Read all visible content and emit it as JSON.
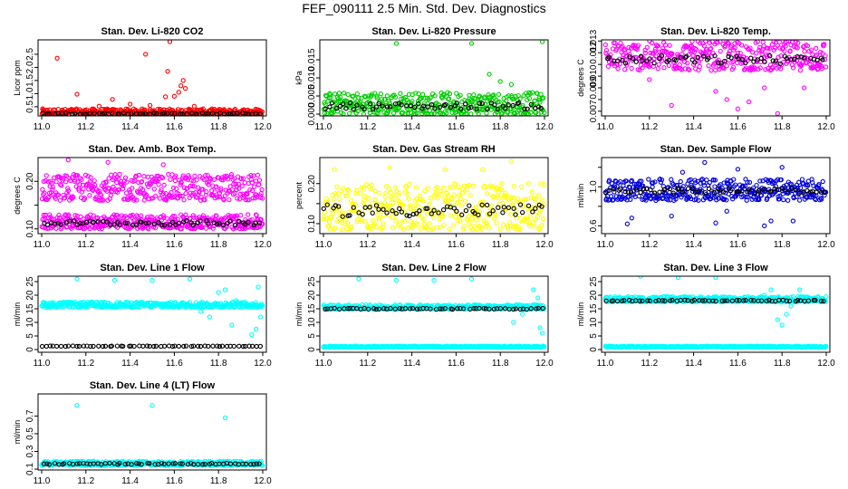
{
  "page_title": "FEF_090111  2.5 Min. Std. Dev. Diagnostics",
  "chart_data": [
    {
      "type": "scatter",
      "title": "Stan. Dev. Li-820 CO2",
      "xlabel": "",
      "ylabel": "Licor ppm",
      "xlim": [
        11.0,
        12.0
      ],
      "ylim": [
        0.15,
        3.05
      ],
      "xticks": [
        11.0,
        11.2,
        11.4,
        11.6,
        11.8,
        12.0
      ],
      "xtick_labels": [
        "11.0",
        "11.2",
        "11.4",
        "11.6",
        "11.8",
        "12.0"
      ],
      "yticks": [
        0.5,
        1.0,
        1.5,
        2.0,
        2.5
      ],
      "ytick_labels": [
        "0.5",
        "1.0",
        "1.5",
        "2.0",
        "2.5"
      ],
      "series": [
        {
          "color": "#ff0000",
          "band": [
            0.18,
            0.42
          ],
          "outliers": [
            [
              11.07,
              2.35
            ],
            [
              11.16,
              0.98
            ],
            [
              11.32,
              0.78
            ],
            [
              11.47,
              2.5
            ],
            [
              11.49,
              0.55
            ],
            [
              11.56,
              0.88
            ],
            [
              11.57,
              1.85
            ],
            [
              11.58,
              2.98
            ],
            [
              11.6,
              0.9
            ],
            [
              11.62,
              1.05
            ],
            [
              11.63,
              1.3
            ],
            [
              11.64,
              1.5
            ],
            [
              11.65,
              1.2
            ],
            [
              11.26,
              0.52
            ],
            [
              11.4,
              0.6
            ],
            [
              11.69,
              0.52
            ]
          ]
        },
        {
          "color": "#000000",
          "band": [
            0.18,
            0.3
          ],
          "outliers": []
        }
      ]
    },
    {
      "type": "scatter",
      "title": "Stan. Dev. Li-820 Pressure",
      "xlabel": "",
      "ylabel": "kPa",
      "xlim": [
        11.0,
        12.0
      ],
      "ylim": [
        -0.0005,
        0.0205
      ],
      "xticks": [
        11.0,
        11.2,
        11.4,
        11.6,
        11.8,
        12.0
      ],
      "xtick_labels": [
        "11.0",
        "11.2",
        "11.4",
        "11.6",
        "11.8",
        "12.0"
      ],
      "yticks": [
        0.0,
        0.005,
        0.01,
        0.015
      ],
      "ytick_labels": [
        "0.000",
        "0.005",
        "0.010",
        "0.015"
      ],
      "series": [
        {
          "color": "#00cc00",
          "band": [
            0.0,
            0.006
          ],
          "outliers": [
            [
              11.33,
              0.0195
            ],
            [
              11.67,
              0.0195
            ],
            [
              11.99,
              0.02
            ],
            [
              11.75,
              0.011
            ],
            [
              11.8,
              0.009
            ],
            [
              11.85,
              0.0082
            ]
          ]
        },
        {
          "color": "#000000",
          "band": [
            0.0,
            0.0045
          ],
          "outliers": []
        }
      ]
    },
    {
      "type": "scatter",
      "title": "Stan. Dev. Li-820 Temp.",
      "xlabel": "",
      "ylabel": "degrees C",
      "xlim": [
        11.0,
        12.0
      ],
      "ylim": [
        0.0066,
        0.0131
      ],
      "xticks": [
        11.0,
        11.2,
        11.4,
        11.6,
        11.8,
        12.0
      ],
      "xtick_labels": [
        "11.0",
        "11.2",
        "11.4",
        "11.6",
        "11.8",
        "12.0"
      ],
      "yticks": [
        0.007,
        0.008,
        0.009,
        0.01,
        0.011,
        0.012,
        0.013
      ],
      "ytick_labels": [
        "0.007",
        "",
        "0.009",
        "0.010",
        "",
        "0.012",
        "0.013"
      ],
      "series": [
        {
          "color": "#ff00ff",
          "band": [
            0.0105,
            0.013
          ],
          "outliers": [
            [
              11.3,
              0.0075
            ],
            [
              11.5,
              0.0087
            ],
            [
              11.55,
              0.008
            ],
            [
              11.6,
              0.0072
            ],
            [
              11.65,
              0.0078
            ],
            [
              11.72,
              0.009
            ],
            [
              11.78,
              0.0068
            ],
            [
              11.9,
              0.009
            ],
            [
              11.2,
              0.0097
            ]
          ]
        },
        {
          "color": "#000000",
          "band": [
            0.0105,
            0.0123
          ],
          "outliers": []
        }
      ]
    },
    {
      "type": "scatter",
      "title": "Stan. Dev. Amb. Box Temp.",
      "xlabel": "",
      "ylabel": "degrees C",
      "xlim": [
        11.0,
        12.0
      ],
      "ylim": [
        0.09,
        0.25
      ],
      "xticks": [
        11.0,
        11.2,
        11.4,
        11.6,
        11.8,
        12.0
      ],
      "xtick_labels": [
        "11.0",
        "11.2",
        "11.4",
        "11.6",
        "11.8",
        "12.0"
      ],
      "yticks": [
        0.1,
        0.15,
        0.2
      ],
      "ytick_labels": [
        "0.10",
        "",
        "0.20"
      ],
      "series": [
        {
          "color": "#ff00ff",
          "band": [
            0.16,
            0.215
          ],
          "outliers": [
            [
              11.12,
              0.245
            ],
            [
              11.3,
              0.24
            ],
            [
              11.55,
              0.235
            ]
          ]
        },
        {
          "color": "#ff00ff",
          "band": [
            0.1,
            0.13
          ],
          "outliers": []
        },
        {
          "color": "#000000",
          "band": [
            0.1,
            0.125
          ],
          "outliers": []
        }
      ]
    },
    {
      "type": "scatter",
      "title": "Stan. Dev. Gas Stream RH",
      "xlabel": "",
      "ylabel": "percent",
      "xlim": [
        11.0,
        12.0
      ],
      "ylim": [
        0.075,
        0.265
      ],
      "xticks": [
        11.0,
        11.2,
        11.4,
        11.6,
        11.8,
        12.0
      ],
      "xtick_labels": [
        "11.0",
        "11.2",
        "11.4",
        "11.6",
        "11.8",
        "12.0"
      ],
      "yticks": [
        0.1,
        0.15,
        0.2
      ],
      "ytick_labels": [
        "0.10",
        "",
        "0.20"
      ],
      "series": [
        {
          "color": "#ffff00",
          "band": [
            0.085,
            0.2
          ],
          "outliers": [
            [
              11.05,
              0.235
            ],
            [
              11.3,
              0.24
            ],
            [
              11.55,
              0.235
            ],
            [
              11.72,
              0.235
            ],
            [
              11.85,
              0.255
            ]
          ]
        },
        {
          "color": "#000000",
          "band": [
            0.095,
            0.17
          ],
          "outliers": []
        }
      ]
    },
    {
      "type": "scatter",
      "title": "Stan. Dev. Sample Flow",
      "xlabel": "",
      "ylabel": "ml/min",
      "xlim": [
        11.0,
        12.0
      ],
      "ylim": [
        0.52,
        1.3
      ],
      "xticks": [
        11.0,
        11.2,
        11.4,
        11.6,
        11.8,
        12.0
      ],
      "xtick_labels": [
        "11.0",
        "11.2",
        "11.4",
        "11.6",
        "11.8",
        "12.0"
      ],
      "yticks": [
        0.6,
        0.8,
        1.0,
        1.2
      ],
      "ytick_labels": [
        "0.6",
        "",
        "1.0",
        ""
      ],
      "series": [
        {
          "color": "#0000dd",
          "band": [
            0.86,
            1.08
          ],
          "outliers": [
            [
              11.1,
              0.62
            ],
            [
              11.12,
              0.68
            ],
            [
              11.3,
              0.7
            ],
            [
              11.45,
              1.25
            ],
            [
              11.5,
              0.63
            ],
            [
              11.55,
              0.75
            ],
            [
              11.72,
              0.6
            ],
            [
              11.75,
              0.65
            ],
            [
              11.8,
              1.2
            ],
            [
              11.85,
              0.65
            ],
            [
              11.6,
              1.18
            ],
            [
              11.35,
              1.15
            ]
          ]
        },
        {
          "color": "#000000",
          "band": [
            0.9,
            1.02
          ],
          "outliers": []
        }
      ]
    },
    {
      "type": "scatter",
      "title": "Stan. Dev. Line 1 Flow",
      "xlabel": "",
      "ylabel": "ml/min",
      "xlim": [
        11.0,
        12.0
      ],
      "ylim": [
        -1,
        27
      ],
      "xticks": [
        11.0,
        11.2,
        11.4,
        11.6,
        11.8,
        12.0
      ],
      "xtick_labels": [
        "11.0",
        "11.2",
        "11.4",
        "11.6",
        "11.8",
        "12.0"
      ],
      "yticks": [
        0,
        5,
        10,
        15,
        20,
        25
      ],
      "ytick_labels": [
        "0",
        "5",
        "10",
        "15",
        "20",
        "25"
      ],
      "series": [
        {
          "color": "#00ffff",
          "band": [
            15.5,
            17.5
          ],
          "outliers": [
            [
              11.16,
              26
            ],
            [
              11.33,
              25.5
            ],
            [
              11.5,
              25.5
            ],
            [
              11.67,
              26
            ],
            [
              11.8,
              21
            ],
            [
              11.83,
              22
            ],
            [
              11.86,
              9
            ],
            [
              11.88,
              18
            ],
            [
              11.95,
              5.5
            ],
            [
              11.97,
              7.5
            ],
            [
              11.98,
              23
            ],
            [
              11.99,
              12
            ],
            [
              11.76,
              12
            ],
            [
              11.72,
              14
            ]
          ]
        },
        {
          "color": "#000000",
          "band": [
            1.0,
            1.5
          ],
          "outliers": []
        }
      ]
    },
    {
      "type": "scatter",
      "title": "Stan. Dev. Line 2 Flow",
      "xlabel": "",
      "ylabel": "ml/min",
      "xlim": [
        11.0,
        12.0
      ],
      "ylim": [
        -1,
        27
      ],
      "xticks": [
        11.0,
        11.2,
        11.4,
        11.6,
        11.8,
        12.0
      ],
      "xtick_labels": [
        "11.0",
        "11.2",
        "11.4",
        "11.6",
        "11.8",
        "12.0"
      ],
      "yticks": [
        0,
        5,
        10,
        15,
        20,
        25
      ],
      "ytick_labels": [
        "0",
        "5",
        "10",
        "15",
        "20",
        "25"
      ],
      "series": [
        {
          "color": "#00ffff",
          "band": [
            14.8,
            16.5
          ],
          "outliers": [
            [
              11.16,
              26
            ],
            [
              11.33,
              25.5
            ],
            [
              11.5,
              25.5
            ],
            [
              11.67,
              26
            ],
            [
              11.86,
              10
            ],
            [
              11.9,
              13
            ],
            [
              11.95,
              22
            ],
            [
              11.97,
              19
            ],
            [
              11.98,
              8
            ],
            [
              11.99,
              6
            ]
          ]
        },
        {
          "color": "#00ffff",
          "band": [
            0.8,
            1.3
          ],
          "outliers": []
        },
        {
          "color": "#000000",
          "band": [
            14.5,
            15.5
          ],
          "outliers": []
        }
      ]
    },
    {
      "type": "scatter",
      "title": "Stan. Dev. Line 3 Flow",
      "xlabel": "",
      "ylabel": "ml/min",
      "xlim": [
        11.0,
        12.0
      ],
      "ylim": [
        -1,
        27
      ],
      "xticks": [
        11.0,
        11.2,
        11.4,
        11.6,
        11.8,
        12.0
      ],
      "xtick_labels": [
        "11.0",
        "11.2",
        "11.4",
        "11.6",
        "11.8",
        "12.0"
      ],
      "yticks": [
        0,
        5,
        10,
        15,
        20,
        25
      ],
      "ytick_labels": [
        "0",
        "5",
        "10",
        "15",
        "20",
        "25"
      ],
      "series": [
        {
          "color": "#00ffff",
          "band": [
            17.5,
            19.5
          ],
          "outliers": [
            [
              11.16,
              27
            ],
            [
              11.33,
              26.5
            ],
            [
              11.5,
              26.5
            ],
            [
              11.72,
              20
            ],
            [
              11.75,
              22
            ],
            [
              11.78,
              11
            ],
            [
              11.8,
              9
            ],
            [
              11.82,
              13
            ],
            [
              11.84,
              16
            ],
            [
              11.88,
              22
            ]
          ]
        },
        {
          "color": "#00ffff",
          "band": [
            0.8,
            1.3
          ],
          "outliers": []
        },
        {
          "color": "#000000",
          "band": [
            17.5,
            18.5
          ],
          "outliers": []
        }
      ]
    },
    {
      "type": "scatter",
      "title": "Stan. Dev. Line 4 (LT) Flow",
      "xlabel": "",
      "ylabel": "ml/min",
      "xlim": [
        11.0,
        12.0
      ],
      "ylim": [
        0.09,
        0.95
      ],
      "xticks": [
        11.0,
        11.2,
        11.4,
        11.6,
        11.8,
        12.0
      ],
      "xtick_labels": [
        "11.0",
        "11.2",
        "11.4",
        "11.6",
        "11.8",
        "12.0"
      ],
      "yticks": [
        0.1,
        0.3,
        0.5,
        0.7
      ],
      "ytick_labels": [
        "0.1",
        "0.3",
        "0.5",
        "0.7"
      ],
      "series": [
        {
          "color": "#00ffff",
          "band": [
            0.14,
            0.19
          ],
          "outliers": [
            [
              11.16,
              0.82
            ],
            [
              11.5,
              0.82
            ],
            [
              11.83,
              0.68
            ]
          ]
        },
        {
          "color": "#000000",
          "band": [
            0.14,
            0.18
          ],
          "outliers": []
        }
      ]
    }
  ]
}
